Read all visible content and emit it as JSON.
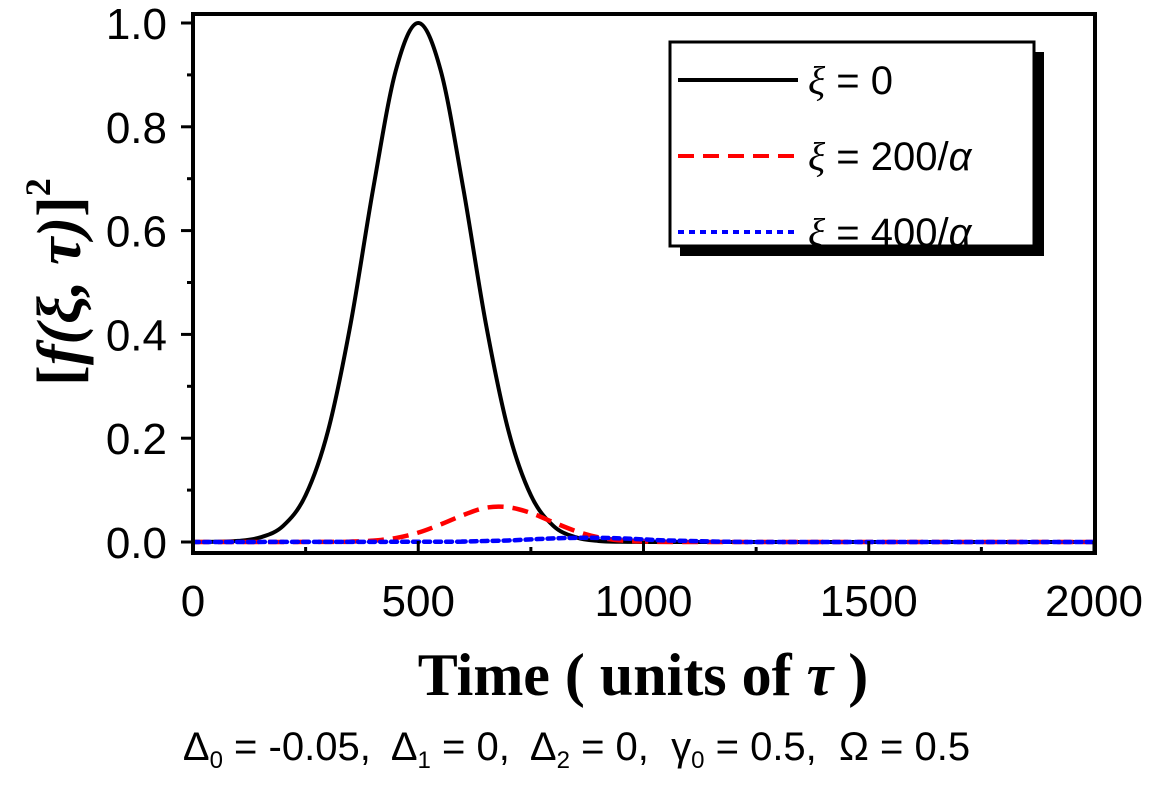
{
  "chart_data": {
    "type": "line",
    "xlabel": "Time ( units of τ )",
    "xlabel_parts": {
      "main": "Time ( units of ",
      "sym": "τ",
      "end": " )"
    },
    "ylabel_parts": {
      "open": "[",
      "f": "f",
      "args": "(ξ, τ)",
      "close": "]",
      "sup": "2"
    },
    "xlim": [
      0,
      2000
    ],
    "ylim": [
      -0.02,
      1.04
    ],
    "xticks": [
      0,
      500,
      1000,
      1500,
      2000
    ],
    "xtick_labels": [
      "0",
      "500",
      "1000",
      "1500",
      "2000"
    ],
    "yticks": [
      0.0,
      0.2,
      0.4,
      0.6,
      0.8,
      1.0
    ],
    "ytick_labels": [
      "0.0",
      "0.2",
      "0.4",
      "0.6",
      "0.8",
      "1.0"
    ],
    "legend_position": "top-right",
    "series": [
      {
        "name": "ξ = 0",
        "sym": "ξ",
        "label_rest": " = 0",
        "color": "#000000",
        "style": "solid",
        "x": [
          0,
          50,
          100,
          150,
          200,
          250,
          300,
          350,
          400,
          450,
          500,
          550,
          600,
          650,
          700,
          750,
          800,
          850,
          900,
          950,
          1000,
          1100,
          1500,
          2000
        ],
        "y": [
          0.0001,
          0.0004,
          0.0021,
          0.009,
          0.031,
          0.09,
          0.215,
          0.421,
          0.681,
          0.908,
          1.0,
          0.908,
          0.681,
          0.421,
          0.215,
          0.09,
          0.031,
          0.009,
          0.002,
          0.0004,
          0.0001,
          0,
          0,
          0
        ]
      },
      {
        "name": "ξ = 200/α",
        "sym": "ξ",
        "label_rest": " = 200/",
        "sym2": "α",
        "color": "#ff0000",
        "style": "dashed",
        "x": [
          0,
          300,
          350,
          400,
          450,
          500,
          550,
          600,
          650,
          700,
          750,
          800,
          850,
          900,
          950,
          1000,
          1100,
          1500,
          2000
        ],
        "y": [
          0,
          0.0002,
          0.0008,
          0.0027,
          0.0076,
          0.018,
          0.034,
          0.052,
          0.066,
          0.067,
          0.056,
          0.038,
          0.021,
          0.009,
          0.003,
          0.001,
          0,
          0,
          0
        ]
      },
      {
        "name": "ξ = 400/α",
        "sym": "ξ",
        "label_rest": " = 400/",
        "sym2": "α",
        "color": "#0000ff",
        "style": "dotted",
        "x": [
          0,
          550,
          600,
          650,
          700,
          750,
          800,
          850,
          900,
          950,
          1000,
          1050,
          1100,
          1150,
          1250,
          1500,
          2000
        ],
        "y": [
          0,
          0.0005,
          0.001,
          0.002,
          0.003,
          0.005,
          0.007,
          0.008,
          0.008,
          0.007,
          0.005,
          0.003,
          0.002,
          0.001,
          0,
          0,
          0
        ]
      }
    ]
  },
  "params": [
    {
      "sym": "Δ",
      "sub": "0",
      "value": " = -0.05,  "
    },
    {
      "sym": "Δ",
      "sub": "1",
      "value": " = 0,  "
    },
    {
      "sym": "Δ",
      "sub": "2",
      "value": " = 0,  "
    },
    {
      "sym": "γ",
      "sub": "0",
      "value": " = 0.5,  "
    },
    {
      "sym": "Ω",
      "sub": "",
      "value": " = 0.5"
    }
  ]
}
